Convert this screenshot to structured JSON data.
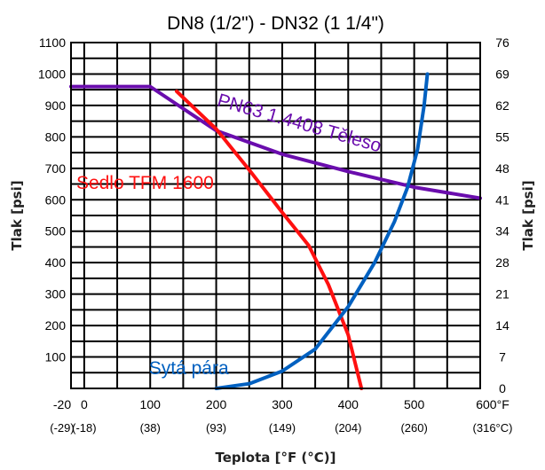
{
  "chart_data": {
    "type": "line",
    "title": "DN8 (1/2\") - DN32 (1 1/4\")",
    "xlabel": "Teplota [°F (°C)]",
    "ylabel_left": "Tlak [psi]",
    "ylabel_right": "Tlak [psi]",
    "xlim": [
      -20,
      600
    ],
    "ylim": [
      0,
      1100
    ],
    "grid": true,
    "x_ticks": [
      {
        "value": -20,
        "label": "-20",
        "sub": "(-29)"
      },
      {
        "value": 0,
        "label": "0",
        "sub": "(-18)"
      },
      {
        "value": 100,
        "label": "100",
        "sub": "(38)"
      },
      {
        "value": 200,
        "label": "200",
        "sub": "(93)"
      },
      {
        "value": 300,
        "label": "300",
        "sub": "(149)"
      },
      {
        "value": 400,
        "label": "400",
        "sub": "(204)"
      },
      {
        "value": 500,
        "label": "500",
        "sub": "(260)"
      },
      {
        "value": 600,
        "label": "600°F",
        "sub": "(316°C)"
      }
    ],
    "y_ticks_left": [
      {
        "value": 100,
        "label": "100"
      },
      {
        "value": 200,
        "label": "200"
      },
      {
        "value": 300,
        "label": "300"
      },
      {
        "value": 400,
        "label": "400"
      },
      {
        "value": 500,
        "label": "500"
      },
      {
        "value": 600,
        "label": "600"
      },
      {
        "value": 700,
        "label": "700"
      },
      {
        "value": 800,
        "label": "800"
      },
      {
        "value": 900,
        "label": "900"
      },
      {
        "value": 1000,
        "label": "1000"
      },
      {
        "value": 1100,
        "label": "1100"
      }
    ],
    "y_ticks_right": [
      {
        "value": 0,
        "label": "0"
      },
      {
        "value": 100,
        "label": "7"
      },
      {
        "value": 200,
        "label": "14"
      },
      {
        "value": 300,
        "label": "21"
      },
      {
        "value": 400,
        "label": "28"
      },
      {
        "value": 500,
        "label": "34"
      },
      {
        "value": 600,
        "label": "41"
      },
      {
        "value": 700,
        "label": "48"
      },
      {
        "value": 800,
        "label": "55"
      },
      {
        "value": 900,
        "label": "62"
      },
      {
        "value": 1000,
        "label": "69"
      },
      {
        "value": 1100,
        "label": "76"
      }
    ],
    "series": [
      {
        "name": "PN63 1.4408 Těleso",
        "color": "#6a0dad",
        "label_at": {
          "x": 200,
          "y": 900,
          "angle": 16
        },
        "points": [
          [
            -20,
            960
          ],
          [
            100,
            960
          ],
          [
            150,
            890
          ],
          [
            200,
            820
          ],
          [
            300,
            745
          ],
          [
            400,
            690
          ],
          [
            500,
            640
          ],
          [
            600,
            605
          ]
        ]
      },
      {
        "name": "Sedlo TFM 1600",
        "color": "#ff1010",
        "label_at": {
          "x": -12,
          "y": 635,
          "angle": 0
        },
        "points": [
          [
            140,
            945
          ],
          [
            200,
            825
          ],
          [
            250,
            695
          ],
          [
            300,
            560
          ],
          [
            340,
            455
          ],
          [
            370,
            330
          ],
          [
            400,
            170
          ],
          [
            420,
            0
          ]
        ]
      },
      {
        "name": "Sytá pára",
        "color": "#0060c0",
        "label_at": {
          "x": 98,
          "y": 45,
          "angle": 0
        },
        "points": [
          [
            200,
            0
          ],
          [
            250,
            15
          ],
          [
            300,
            55
          ],
          [
            350,
            125
          ],
          [
            400,
            260
          ],
          [
            440,
            400
          ],
          [
            470,
            530
          ],
          [
            490,
            640
          ],
          [
            505,
            760
          ],
          [
            515,
            900
          ],
          [
            520,
            1000
          ]
        ]
      }
    ]
  }
}
